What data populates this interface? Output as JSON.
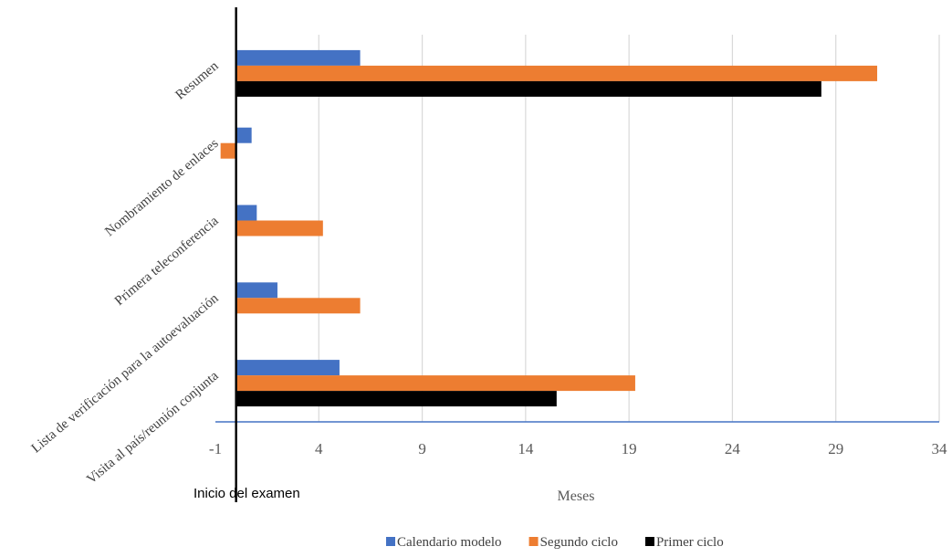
{
  "chart_data": {
    "type": "bar",
    "orientation": "horizontal",
    "categories": [
      "Resumen",
      "Nombramiento de enlaces",
      "Primera teleconferencia",
      "Lista de verificación para la autoevaluación",
      "Visita al país/reunión conjunta"
    ],
    "series": [
      {
        "name": "Calendario modelo",
        "color": "#4472C4",
        "values": [
          6,
          0.75,
          1,
          2,
          5
        ]
      },
      {
        "name": "Segundo ciclo",
        "color": "#ED7D31",
        "values": [
          31,
          -0.75,
          4.2,
          6,
          19.3
        ]
      },
      {
        "name": "Primer ciclo",
        "color": "#000000",
        "values": [
          28.3,
          null,
          null,
          null,
          15.5
        ]
      }
    ],
    "xlabel": "Meses",
    "xlim": [
      -1,
      34
    ],
    "xticks": [
      -1,
      4,
      9,
      14,
      19,
      24,
      29,
      34
    ],
    "reference_line": {
      "x": 0,
      "label": "Inicio del examen"
    },
    "grid": true,
    "legend": "bottom"
  }
}
